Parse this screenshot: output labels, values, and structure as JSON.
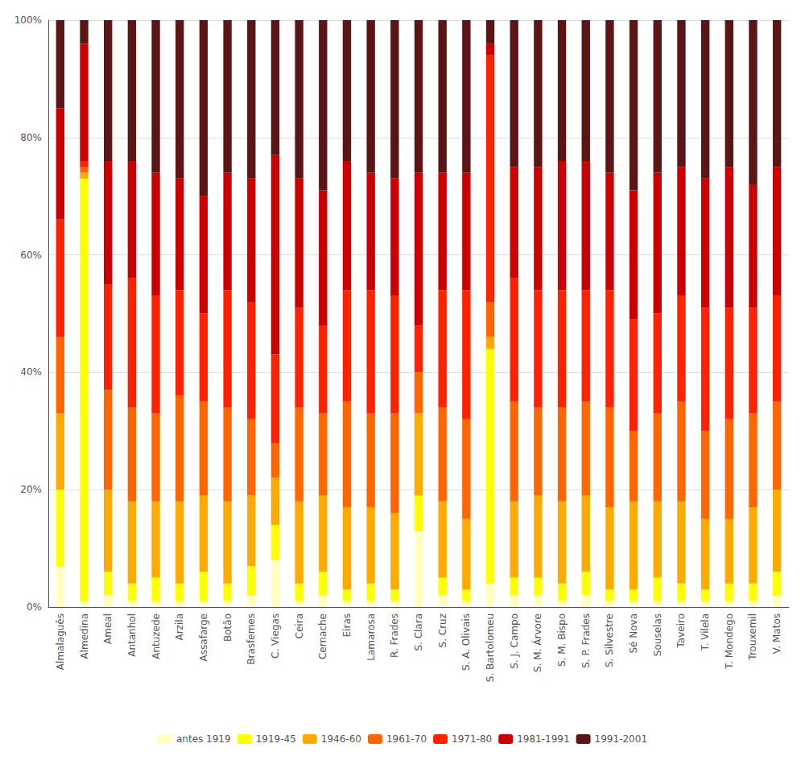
{
  "chart_data": {
    "type": "bar",
    "stacked": true,
    "categories": [
      "Almalaguês",
      "Almedina",
      "Ameal",
      "Antanhol",
      "Antuzede",
      "Arzila",
      "Assafarge",
      "Botão",
      "Brasfemes",
      "C. Viegas",
      "Ceira",
      "Cernache",
      "Eiras",
      "Lamarosa",
      "R. Frades",
      "S. Clara",
      "S. Cruz",
      "S. A. Olivais",
      "S. Bartolomeu",
      "S. J. Campo",
      "S. M. Árvore",
      "S. M. Bispo",
      "S. P. Frades",
      "S. Silvestre",
      "Sé Nova",
      "Souselas",
      "Taveiro",
      "T. Vilela",
      "T. Mondego",
      "Trouxemil",
      "V. Matos"
    ],
    "series": [
      {
        "name": "antes 1919",
        "color": "#ffffc0",
        "values": [
          7,
          1,
          2,
          1,
          1,
          1,
          1,
          1,
          2,
          8,
          1,
          2,
          1,
          1,
          1,
          13,
          2,
          1,
          4,
          2,
          2,
          1,
          2,
          1,
          1,
          1,
          1,
          1,
          1,
          1,
          2
        ]
      },
      {
        "name": "1919-45",
        "color": "#ffff00",
        "values": [
          13,
          72,
          4,
          3,
          4,
          3,
          5,
          3,
          5,
          6,
          3,
          4,
          2,
          3,
          2,
          6,
          3,
          2,
          40,
          3,
          3,
          3,
          4,
          2,
          2,
          4,
          3,
          2,
          3,
          3,
          4
        ]
      },
      {
        "name": "1946-60",
        "color": "#ffaa00",
        "values": [
          13,
          1,
          14,
          14,
          13,
          14,
          13,
          14,
          12,
          8,
          14,
          13,
          14,
          13,
          13,
          14,
          13,
          12,
          2,
          13,
          14,
          14,
          13,
          14,
          15,
          13,
          14,
          12,
          11,
          13,
          14
        ]
      },
      {
        "name": "1961-70",
        "color": "#ff6600",
        "values": [
          13,
          1,
          17,
          16,
          15,
          18,
          16,
          16,
          13,
          6,
          16,
          14,
          18,
          16,
          17,
          7,
          16,
          17,
          6,
          17,
          15,
          16,
          16,
          17,
          12,
          15,
          17,
          15,
          17,
          16,
          15
        ]
      },
      {
        "name": "1971-80",
        "color": "#ff2200",
        "values": [
          20,
          1,
          18,
          22,
          20,
          18,
          15,
          20,
          20,
          15,
          17,
          15,
          19,
          21,
          20,
          8,
          20,
          22,
          42,
          21,
          20,
          20,
          19,
          20,
          19,
          17,
          18,
          21,
          19,
          18,
          18
        ]
      },
      {
        "name": "1981-1991",
        "color": "#cc0000",
        "values": [
          19,
          20,
          21,
          20,
          21,
          19,
          20,
          20,
          21,
          34,
          22,
          23,
          22,
          20,
          20,
          26,
          20,
          20,
          2,
          19,
          21,
          22,
          22,
          20,
          22,
          24,
          22,
          22,
          24,
          21,
          22
        ]
      },
      {
        "name": "1991-2001",
        "color": "#5c1515",
        "values": [
          15,
          4,
          24,
          24,
          26,
          27,
          30,
          26,
          27,
          23,
          27,
          29,
          24,
          26,
          27,
          26,
          26,
          26,
          4,
          25,
          25,
          24,
          24,
          26,
          29,
          26,
          25,
          27,
          25,
          28,
          25
        ]
      }
    ],
    "ylim": [
      0,
      100
    ],
    "yticks": [
      {
        "value": 0,
        "label": "0%"
      },
      {
        "value": 20,
        "label": "20%"
      },
      {
        "value": 40,
        "label": "40%"
      },
      {
        "value": 60,
        "label": "60%"
      },
      {
        "value": 80,
        "label": "80%"
      },
      {
        "value": 100,
        "label": "100%"
      }
    ],
    "grid": true,
    "legend": "bottom"
  }
}
